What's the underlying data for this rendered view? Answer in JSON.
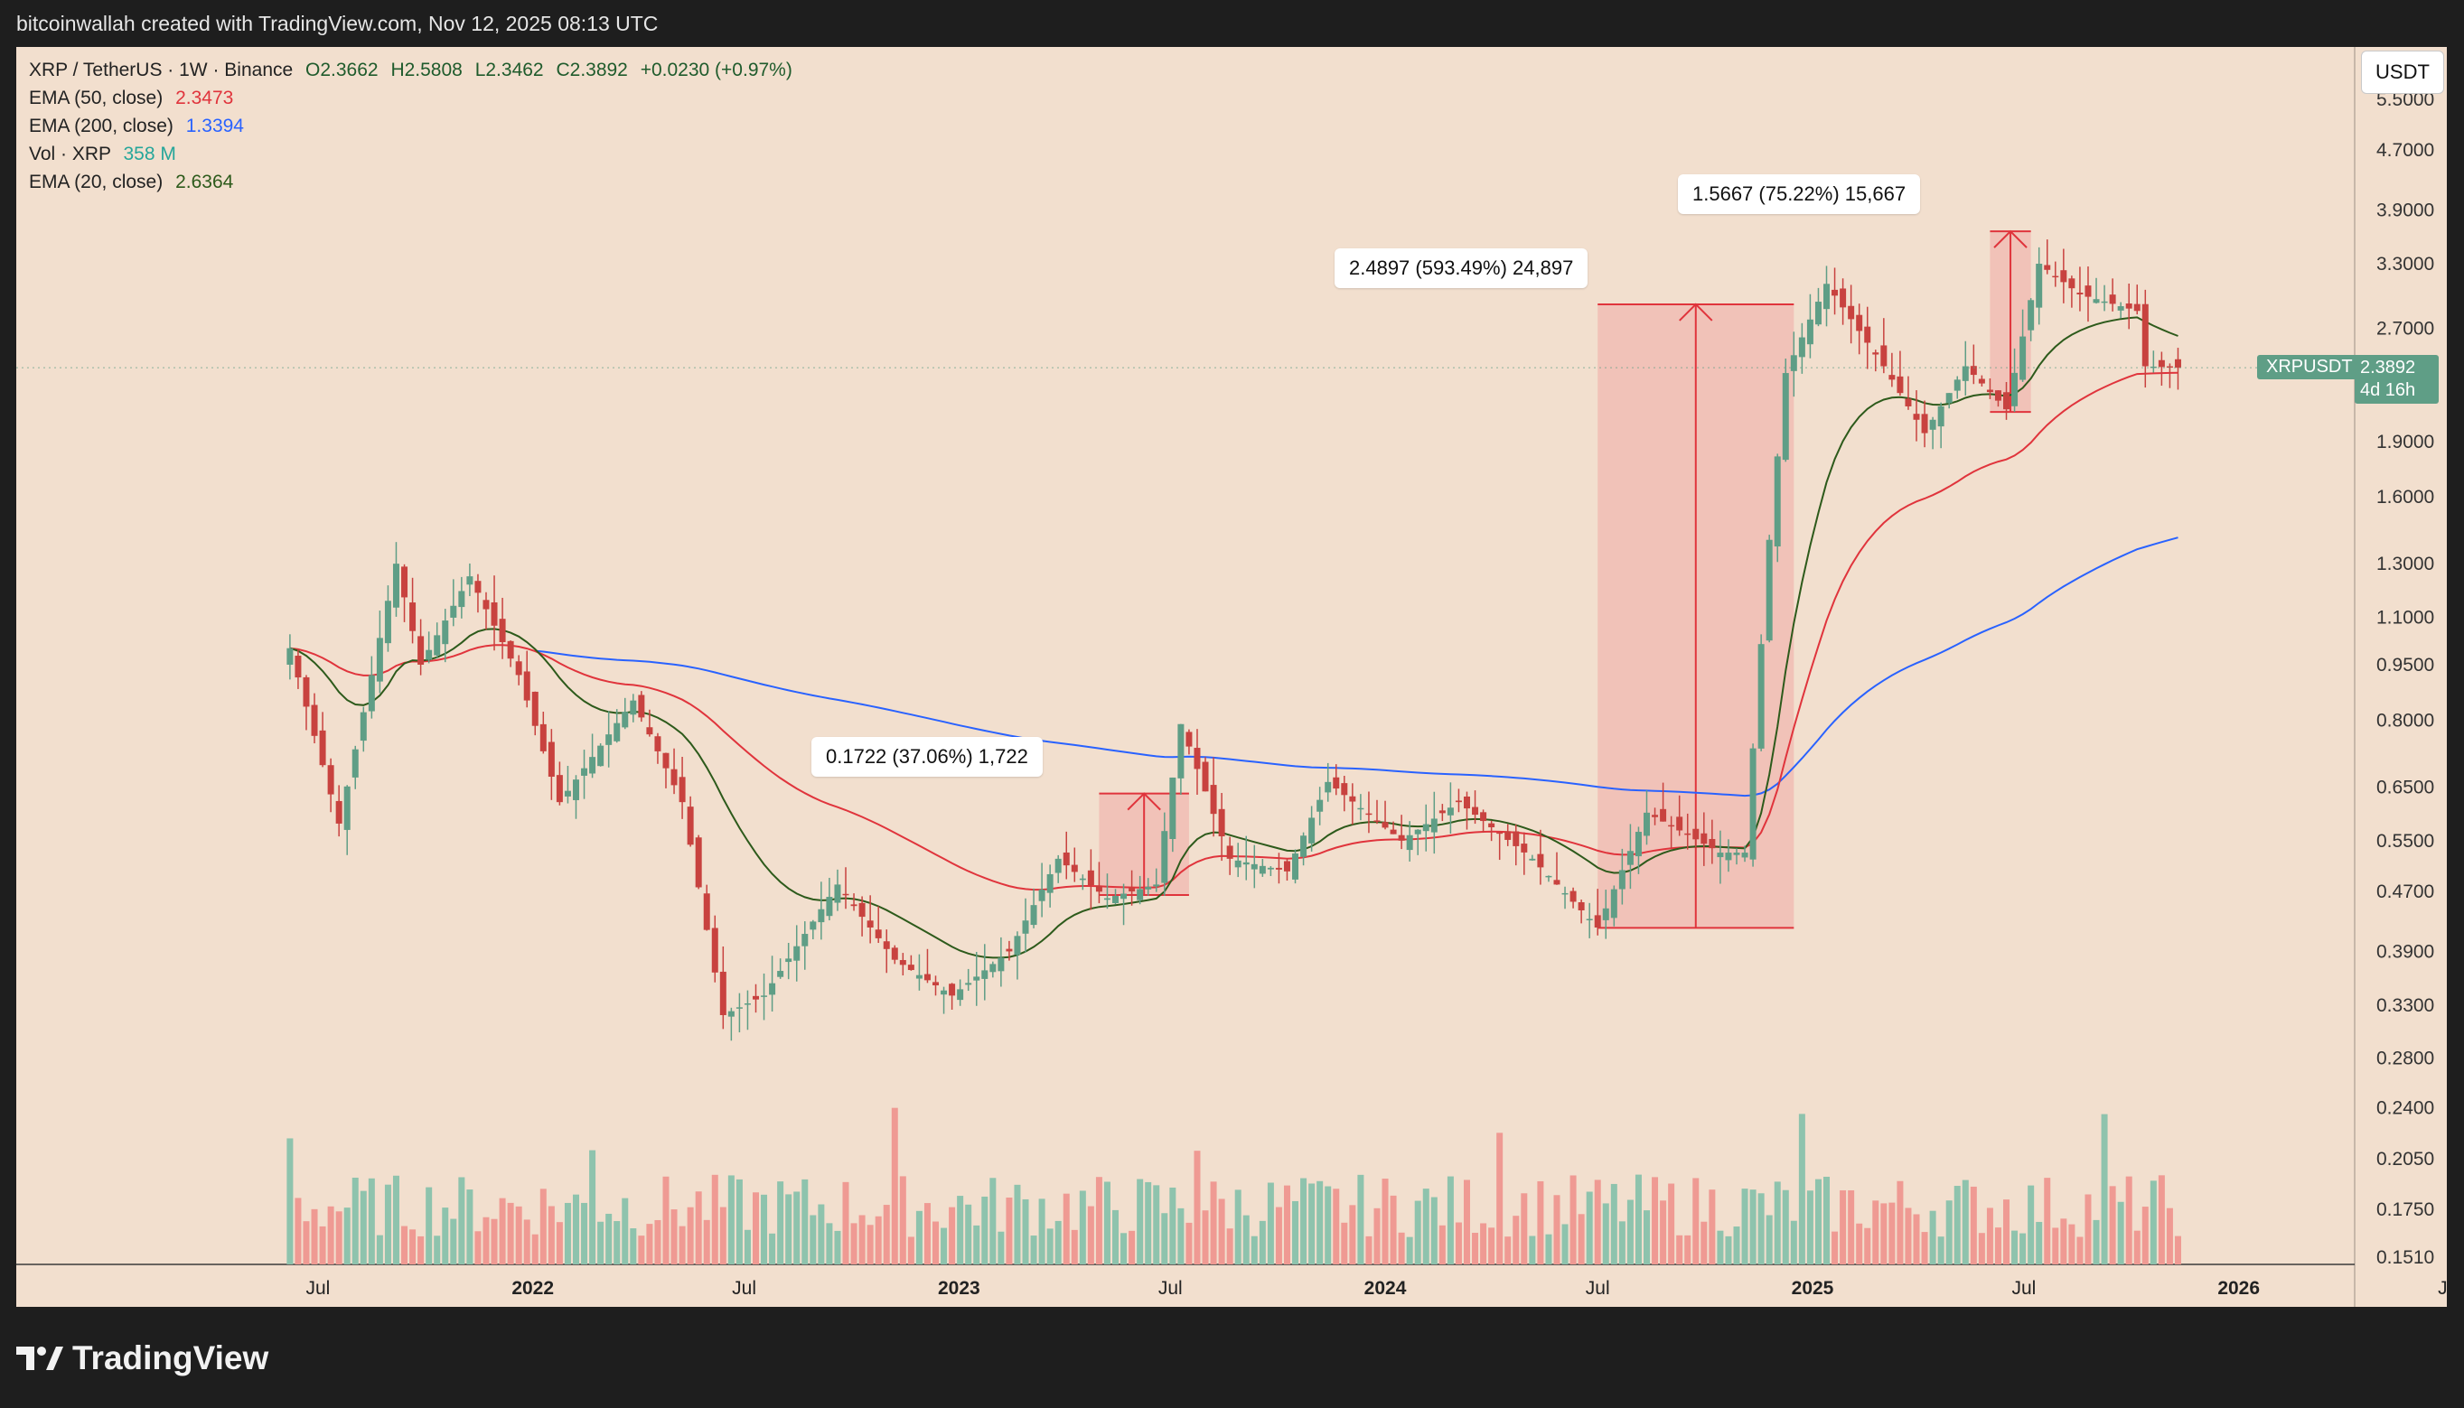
{
  "header": {
    "credit": "bitcoinwallah created with TradingView.com, Nov 12, 2025 08:13 UTC"
  },
  "legend": {
    "symbol_line": "XRP / TetherUS · 1W · Binance",
    "open": "O2.3662",
    "high": "H2.5808",
    "low": "L2.3462",
    "close": "C2.3892",
    "change": "+0.0230 (+0.97%)",
    "ema50_label": "EMA (50, close)",
    "ema50_value": "2.3473",
    "ema200_label": "EMA (200, close)",
    "ema200_value": "1.3394",
    "vol_label": "Vol · XRP",
    "vol_value": "358 M",
    "ema20_label": "EMA (20, close)",
    "ema20_value": "2.6364"
  },
  "currency_button": "USDT",
  "price_tag": {
    "label": "XRPUSDT",
    "value": "2.3892",
    "countdown": "4d 16h"
  },
  "callouts": [
    "0.1722 (37.06%) 1,722",
    "2.4897 (593.49%) 24,897",
    "1.5667 (75.22%) 15,667"
  ],
  "footer": {
    "brand": "TradingView"
  },
  "colors": {
    "background": "#f2dfce",
    "up": "#5f9e86",
    "down": "#c8423f",
    "ema20": "#2d5a1b",
    "ema50": "#e0343c",
    "ema200": "#2962ff",
    "vol_up": "#8ec3ad",
    "vol_down": "#ef9a93",
    "zone": "#f0b8b0"
  },
  "chart_data": {
    "type": "candlestick",
    "title": "XRP / TetherUS · 1W · Binance",
    "y_scale": "log",
    "y_ticks": [
      "5.5000",
      "4.7000",
      "3.9000",
      "3.3000",
      "2.7000",
      "1.9000",
      "1.6000",
      "1.3000",
      "1.1000",
      "0.9500",
      "0.8000",
      "0.6500",
      "0.5500",
      "0.4700",
      "0.3900",
      "0.3300",
      "0.2800",
      "0.2400",
      "0.2050",
      "0.1750",
      "0.1510"
    ],
    "x_ticks": [
      "Jul",
      "2022",
      "Jul",
      "2023",
      "Jul",
      "2024",
      "Jul",
      "2025",
      "Jul",
      "2026",
      "Jul"
    ],
    "price_path": [
      [
        "2021-06-07",
        1.0
      ],
      [
        "2021-07-19",
        0.58
      ],
      [
        "2021-09-06",
        1.3
      ],
      [
        "2021-09-27",
        0.95
      ],
      [
        "2021-11-08",
        1.25
      ],
      [
        "2021-12-20",
        0.92
      ],
      [
        "2022-01-24",
        0.62
      ],
      [
        "2022-03-28",
        0.85
      ],
      [
        "2022-05-09",
        0.62
      ],
      [
        "2022-06-13",
        0.32
      ],
      [
        "2022-07-18",
        0.34
      ],
      [
        "2022-09-19",
        0.48
      ],
      [
        "2022-11-07",
        0.38
      ],
      [
        "2022-12-26",
        0.34
      ],
      [
        "2023-02-13",
        0.39
      ],
      [
        "2023-03-27",
        0.52
      ],
      [
        "2023-05-08",
        0.46
      ],
      [
        "2023-06-19",
        0.48
      ],
      [
        "2023-07-10",
        0.79
      ],
      [
        "2023-08-21",
        0.52
      ],
      [
        "2023-10-09",
        0.5
      ],
      [
        "2023-11-13",
        0.66
      ],
      [
        "2024-01-15",
        0.55
      ],
      [
        "2024-03-04",
        0.62
      ],
      [
        "2024-05-06",
        0.52
      ],
      [
        "2024-07-01",
        0.42
      ],
      [
        "2024-08-12",
        0.6
      ],
      [
        "2024-10-14",
        0.53
      ],
      [
        "2024-11-04",
        0.53
      ],
      [
        "2024-11-25",
        1.4
      ],
      [
        "2024-12-09",
        2.35
      ],
      [
        "2025-01-13",
        3.1
      ],
      [
        "2025-03-03",
        2.4
      ],
      [
        "2025-04-07",
        1.95
      ],
      [
        "2025-05-12",
        2.4
      ],
      [
        "2025-06-16",
        2.1
      ],
      [
        "2025-07-14",
        3.3
      ],
      [
        "2025-08-18",
        3.0
      ],
      [
        "2025-10-06",
        2.85
      ],
      [
        "2025-10-13",
        2.4
      ],
      [
        "2025-11-10",
        2.3892
      ]
    ],
    "ema_series": [
      {
        "name": "EMA (20, close)",
        "value": 2.6364
      },
      {
        "name": "EMA (50, close)",
        "value": 2.3473
      },
      {
        "name": "EMA (200, close)",
        "value": 1.3394
      }
    ],
    "volume_last": "358 M",
    "measurements": [
      {
        "label": "0.1722 (37.06%) 1,722",
        "from_date": "2023-05-01",
        "to_date": "2023-07-17",
        "low": 0.4646,
        "high": 0.6368
      },
      {
        "label": "2.4897 (593.49%) 24,897",
        "from_date": "2024-07-01",
        "to_date": "2024-12-16",
        "low": 0.4195,
        "high": 2.9092
      },
      {
        "label": "1.5667 (75.22%) 15,667",
        "from_date": "2025-06-02",
        "to_date": "2025-07-07",
        "low": 2.0828,
        "high": 3.6495
      }
    ],
    "last_price": 2.3892,
    "grid": false
  }
}
